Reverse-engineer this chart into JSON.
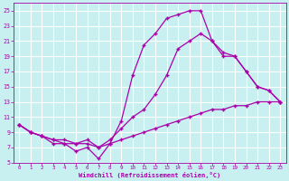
{
  "line1_x": [
    0,
    1,
    2,
    3,
    4,
    5,
    6,
    7,
    8,
    9,
    10,
    11,
    12,
    13,
    14,
    15,
    16,
    17,
    18,
    19,
    20,
    21,
    22,
    23
  ],
  "line1_y": [
    10,
    9,
    8.5,
    8,
    8,
    7.5,
    7.5,
    7,
    7.5,
    8,
    8.5,
    9,
    9.5,
    10,
    10.5,
    11,
    11.5,
    12,
    12,
    12.5,
    12.5,
    13,
    13,
    13
  ],
  "line2_x": [
    0,
    1,
    2,
    3,
    4,
    5,
    6,
    7,
    8,
    9,
    10,
    11,
    12,
    13,
    14,
    15,
    16,
    17,
    18,
    19,
    20,
    21,
    22,
    23
  ],
  "line2_y": [
    10,
    9,
    8.5,
    7.5,
    7.5,
    6.5,
    7,
    5.5,
    7.5,
    10.5,
    16.5,
    20.5,
    22,
    24,
    24.5,
    25,
    25,
    21,
    19.5,
    19,
    17,
    15,
    14.5,
    13
  ],
  "line3_x": [
    0,
    1,
    2,
    3,
    4,
    5,
    6,
    7,
    8,
    9,
    10,
    11,
    12,
    13,
    14,
    15,
    16,
    17,
    18,
    19,
    20,
    21,
    22,
    23
  ],
  "line3_y": [
    10,
    9,
    8.5,
    8,
    7.5,
    7.5,
    8,
    7,
    8,
    9.5,
    11,
    12,
    14,
    16.5,
    20,
    21,
    22,
    21,
    19,
    19,
    17,
    15,
    14.5,
    13
  ],
  "line_color": "#aa00aa",
  "bg_color": "#c8f0f0",
  "grid_color": "#ffffff",
  "xlim": [
    -0.5,
    23.5
  ],
  "ylim": [
    5,
    26
  ],
  "xticks": [
    0,
    1,
    2,
    3,
    4,
    5,
    6,
    7,
    8,
    9,
    10,
    11,
    12,
    13,
    14,
    15,
    16,
    17,
    18,
    19,
    20,
    21,
    22,
    23
  ],
  "yticks": [
    5,
    7,
    9,
    11,
    13,
    15,
    17,
    19,
    21,
    23,
    25
  ],
  "xlabel": "Windchill (Refroidissement éolien,°C)",
  "marker": "+"
}
